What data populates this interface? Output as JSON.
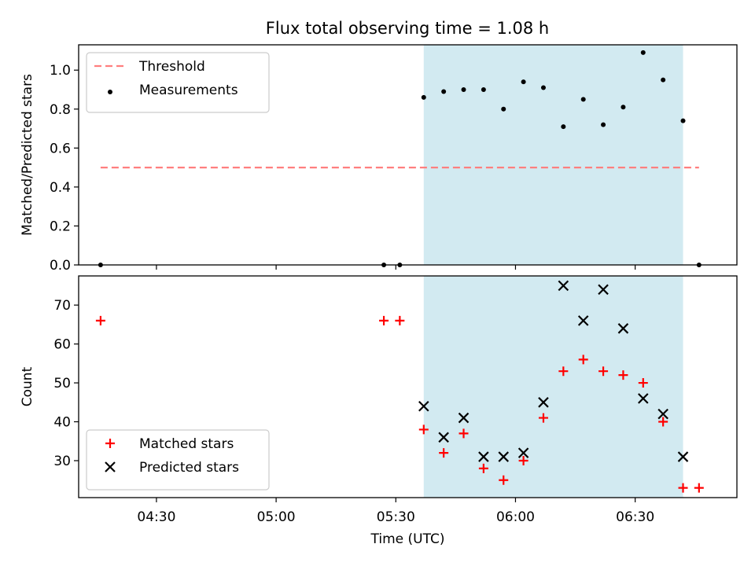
{
  "chart_data": [
    {
      "type": "scatter",
      "title": "Flux total observing time = 1.08 h",
      "xlabel": "",
      "ylabel": "Matched/Predicted stars",
      "ylim": [
        0,
        1.13
      ],
      "yticks": [
        "0.0",
        "0.2",
        "0.4",
        "0.6",
        "0.8",
        "1.0"
      ],
      "ytick_values": [
        0,
        0.2,
        0.4,
        0.6,
        0.8,
        1.0
      ],
      "x_tick_minutes": [
        270,
        300,
        330,
        360,
        390
      ],
      "xticks": [],
      "legend_position": "upper-left",
      "shaded_region": {
        "x_start": "05:37",
        "x_end": "06:42",
        "color": "#add8e6"
      },
      "threshold": {
        "name": "Threshold",
        "value": 0.5,
        "x_start": "04:16",
        "x_end": "06:46",
        "color": "#ff7f7f"
      },
      "series": [
        {
          "name": "Measurements",
          "marker": "dot",
          "color": "#000000",
          "x": [
            "04:16",
            "05:27",
            "05:31",
            "05:37",
            "05:42",
            "05:47",
            "05:52",
            "05:57",
            "06:02",
            "06:07",
            "06:12",
            "06:17",
            "06:22",
            "06:27",
            "06:32",
            "06:37",
            "06:42",
            "06:46"
          ],
          "y": [
            0.0,
            0.0,
            0.0,
            0.86,
            0.89,
            0.9,
            0.9,
            0.8,
            0.94,
            0.91,
            0.71,
            0.85,
            0.72,
            0.81,
            1.09,
            0.95,
            0.74,
            0.0
          ]
        }
      ]
    },
    {
      "type": "scatter",
      "title": "",
      "xlabel": "Time (UTC)",
      "ylabel": "Count",
      "ylim": [
        20.5,
        77.5
      ],
      "yticks": [
        "30",
        "40",
        "50",
        "60",
        "70"
      ],
      "ytick_values": [
        30,
        40,
        50,
        60,
        70
      ],
      "x_tick_minutes": [
        270,
        300,
        330,
        360,
        390
      ],
      "xticks": [
        "04:30",
        "05:00",
        "05:30",
        "06:00",
        "06:30"
      ],
      "legend_position": "lower-left",
      "shaded_region": {
        "x_start": "05:37",
        "x_end": "06:42",
        "color": "#add8e6"
      },
      "series": [
        {
          "name": "Matched stars",
          "marker": "plus",
          "color": "#ff0000",
          "x": [
            "04:16",
            "05:27",
            "05:31",
            "05:37",
            "05:42",
            "05:47",
            "05:52",
            "05:57",
            "06:02",
            "06:07",
            "06:12",
            "06:17",
            "06:22",
            "06:27",
            "06:32",
            "06:37",
            "06:42",
            "06:46"
          ],
          "y": [
            66,
            66,
            66,
            38,
            32,
            37,
            28,
            25,
            30,
            41,
            53,
            56,
            53,
            52,
            50,
            40,
            23,
            23
          ]
        },
        {
          "name": "Predicted stars",
          "marker": "x",
          "color": "#000000",
          "x": [
            "05:37",
            "05:42",
            "05:47",
            "05:52",
            "05:57",
            "06:02",
            "06:07",
            "06:12",
            "06:17",
            "06:22",
            "06:27",
            "06:32",
            "06:37",
            "06:42"
          ],
          "y": [
            44,
            36,
            41,
            31,
            31,
            32,
            45,
            75,
            66,
            74,
            64,
            46,
            42,
            31
          ]
        }
      ]
    }
  ]
}
